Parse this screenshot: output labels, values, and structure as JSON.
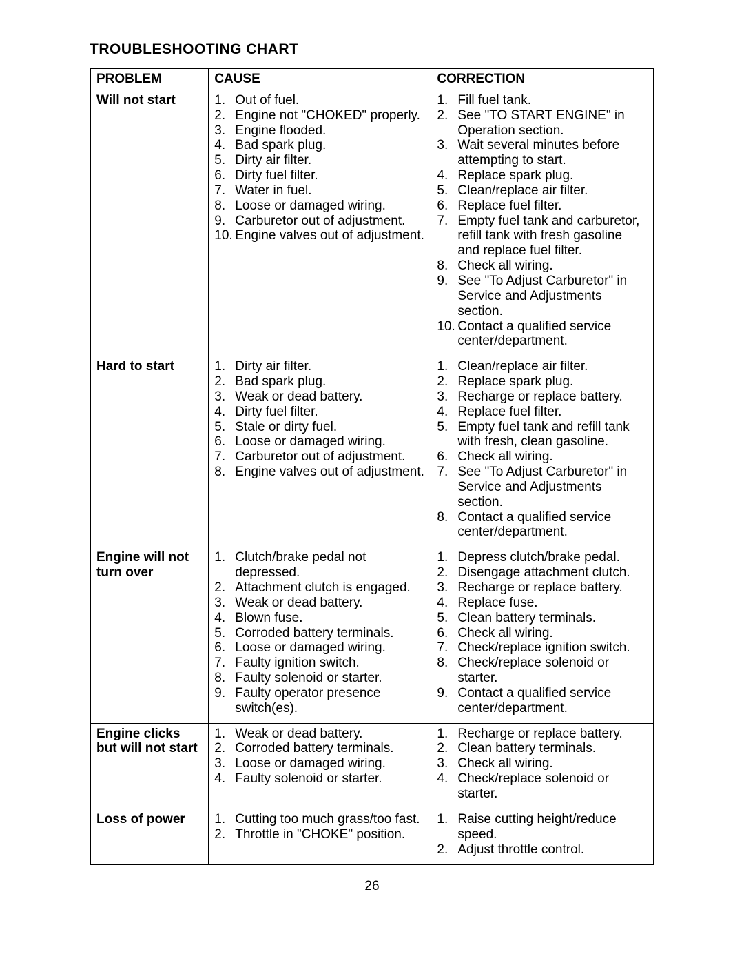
{
  "title": "TROUBLESHOOTING CHART",
  "headers": {
    "problem": "PROBLEM",
    "cause": "CAUSE",
    "correction": "CORRECTION"
  },
  "rows": [
    {
      "problem": "Will not start",
      "causes": [
        "Out of fuel.",
        "Engine not \"CHOKED\" properly.",
        "Engine flooded.",
        "Bad spark plug.",
        "Dirty air filter.",
        "Dirty fuel filter.",
        "Water in fuel.",
        "Loose or damaged wiring.",
        "Carburetor out of adjustment.",
        "Engine valves out of adjustment."
      ],
      "corrections": [
        "Fill fuel tank.",
        "See \"TO START ENGINE\" in Operation section.",
        "Wait several minutes before attempting to start.",
        "Replace spark plug.",
        "Clean/replace air filter.",
        "Replace fuel filter.",
        "Empty fuel tank and carburetor, refill tank with fresh gasoline and replace fuel filter.",
        "Check all wiring.",
        "See \"To Adjust Carburetor\" in Service and Adjustments section.",
        "Contact a qualified service center/department."
      ]
    },
    {
      "problem": "Hard to start",
      "causes": [
        "Dirty air filter.",
        "Bad spark plug.",
        "Weak or dead battery.",
        "Dirty fuel filter.",
        "Stale or dirty fuel.",
        "Loose or damaged wiring.",
        "Carburetor out of adjustment.",
        "Engine valves out of adjustment."
      ],
      "corrections": [
        "Clean/replace air filter.",
        "Replace spark plug.",
        "Recharge or replace battery.",
        "Replace fuel filter.",
        "Empty fuel tank and refill tank with fresh, clean gasoline.",
        "Check all wiring.",
        "See \"To Adjust Carburetor\" in Service and Adjustments section.",
        "Contact a qualified service center/department."
      ]
    },
    {
      "problem": "Engine will not turn over",
      "causes": [
        "Clutch/brake pedal not depressed.",
        "Attachment clutch is engaged.",
        "Weak or dead battery.",
        "Blown fuse.",
        "Corroded battery terminals.",
        "Loose or damaged wiring.",
        "Faulty ignition switch.",
        "Faulty solenoid or starter.",
        "Faulty operator presence switch(es)."
      ],
      "corrections": [
        "Depress clutch/brake pedal.",
        "Disengage attachment clutch.",
        "Recharge or replace battery.",
        "Replace fuse.",
        "Clean battery terminals.",
        "Check all wiring.",
        "Check/replace ignition switch.",
        "Check/replace solenoid or starter.",
        "Contact a qualified service center/department."
      ]
    },
    {
      "problem": "Engine clicks but will not start",
      "causes": [
        "Weak or dead battery.",
        "Corroded battery terminals.",
        "Loose or damaged wiring.",
        "Faulty solenoid or starter."
      ],
      "corrections": [
        "Recharge or replace battery.",
        "Clean battery terminals.",
        "Check all wiring.",
        "Check/replace solenoid or starter."
      ]
    },
    {
      "problem": "Loss of power",
      "causes": [
        "Cutting too much grass/too fast.",
        "Throttle in \"CHOKE\" position."
      ],
      "corrections": [
        "Raise cutting height/reduce speed.",
        "Adjust throttle control."
      ]
    }
  ],
  "pageNumber": "26"
}
